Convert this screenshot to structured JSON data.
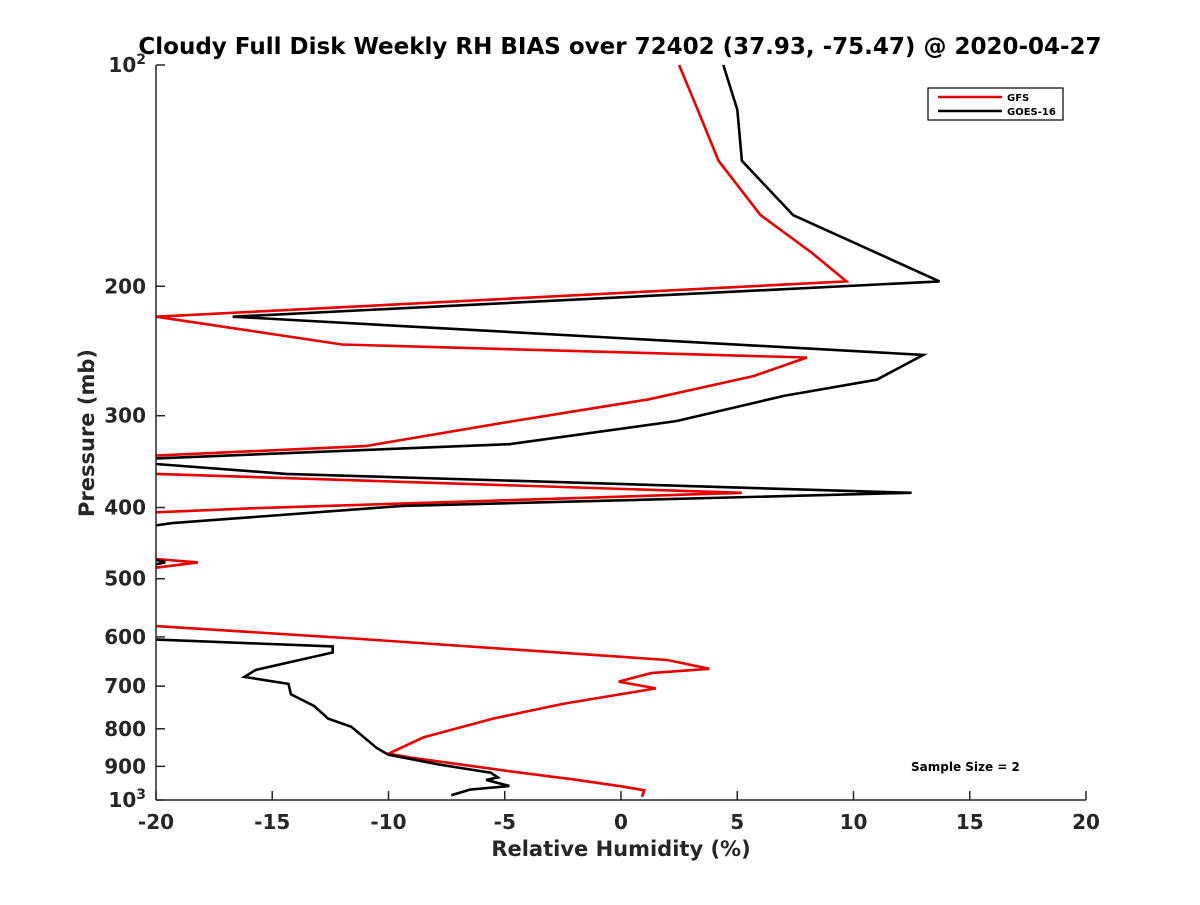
{
  "chart_data": {
    "type": "line",
    "title": "Cloudy Full Disk Weekly RH BIAS over 72402 (37.93, -75.47) @ 2020-04-27",
    "xlabel": "Relative Humidity (%)",
    "ylabel": "Pressure (mb)",
    "xlim": [
      -20,
      20
    ],
    "ylim": [
      100,
      1000
    ],
    "y_scale": "log",
    "y_reversed": true,
    "grid": false,
    "legend_position": "top-right",
    "x_ticks": [
      "-20",
      "-15",
      "-10",
      "-5",
      "0",
      "5",
      "10",
      "15",
      "20"
    ],
    "y_ticks": [
      {
        "value": 100,
        "base": "10",
        "exp": "2"
      },
      {
        "value": 200,
        "label": "200"
      },
      {
        "value": 300,
        "label": "300"
      },
      {
        "value": 400,
        "label": "400"
      },
      {
        "value": 500,
        "label": "500"
      },
      {
        "value": 600,
        "label": "600"
      },
      {
        "value": 700,
        "label": "700"
      },
      {
        "value": 800,
        "label": "800"
      },
      {
        "value": 900,
        "label": "900"
      },
      {
        "value": 1000,
        "base": "10",
        "exp": "3"
      }
    ],
    "annotation": "Sample Size = 2",
    "series": [
      {
        "name": "GFS",
        "color": "#e60000",
        "segments": [
          [
            [
              2.5,
              100
            ],
            [
              3.3,
              115
            ],
            [
              4.2,
              135
            ],
            [
              6.0,
              160
            ],
            [
              8.2,
              180
            ],
            [
              9.7,
              197
            ],
            [
              -20,
              220
            ],
            [
              -12,
              240
            ],
            [
              8.0,
              250
            ],
            [
              5.7,
              265
            ],
            [
              1.2,
              285
            ],
            [
              -4.6,
              305
            ],
            [
              -11.0,
              330
            ],
            [
              -20,
              340
            ]
          ],
          [
            [
              -20,
              360
            ],
            [
              5.2,
              382
            ],
            [
              -15.9,
              401
            ],
            [
              -20,
              406
            ]
          ],
          [
            [
              -20,
              470
            ],
            [
              -18.2,
              475
            ],
            [
              -20,
              483
            ]
          ],
          [
            [
              -20,
              580
            ],
            [
              -11.5,
              603
            ],
            [
              2.0,
              645
            ],
            [
              3.8,
              663
            ],
            [
              1.3,
              672
            ],
            [
              -0.1,
              690
            ],
            [
              1.5,
              705
            ],
            [
              -2.5,
              740
            ],
            [
              -5.5,
              775
            ],
            [
              -8.5,
              822
            ],
            [
              -10.0,
              865
            ],
            [
              -9.1,
              875
            ],
            [
              -5.0,
              912
            ],
            [
              -2.0,
              938
            ],
            [
              0,
              958
            ],
            [
              1.0,
              970
            ],
            [
              0.9,
              990
            ]
          ]
        ]
      },
      {
        "name": "GOES-16",
        "color": "#000000",
        "segments": [
          [
            [
              4.4,
              100
            ],
            [
              5.0,
              115
            ],
            [
              5.2,
              135
            ],
            [
              7.4,
              160
            ],
            [
              13.7,
              197
            ],
            [
              -16.7,
              220
            ],
            [
              13.0,
              248
            ],
            [
              11.0,
              268
            ],
            [
              7.0,
              282
            ],
            [
              2.4,
              305
            ],
            [
              -4.8,
              328
            ],
            [
              -20,
              343
            ]
          ],
          [
            [
              -20,
              349
            ],
            [
              -14.4,
              360
            ],
            [
              12.5,
              382
            ],
            [
              -9.4,
              398
            ],
            [
              -19.3,
              420
            ],
            [
              -20,
              423
            ]
          ],
          [
            [
              -20,
              471
            ],
            [
              -19.6,
              475
            ],
            [
              -20,
              478
            ]
          ],
          [
            [
              -20,
              605
            ],
            [
              -12.4,
              618
            ],
            [
              -12.4,
              630
            ],
            [
              -15.7,
              665
            ],
            [
              -16.2,
              680
            ],
            [
              -14.3,
              695
            ],
            [
              -14.2,
              718
            ],
            [
              -13.2,
              745
            ],
            [
              -12.6,
              775
            ],
            [
              -11.6,
              795
            ],
            [
              -10.5,
              850
            ],
            [
              -10.0,
              868
            ],
            [
              -7.8,
              895
            ],
            [
              -5.6,
              918
            ],
            [
              -5.3,
              932
            ],
            [
              -5.8,
              939
            ],
            [
              -4.8,
              957
            ],
            [
              -6.5,
              968
            ],
            [
              -7.3,
              985
            ]
          ]
        ]
      }
    ]
  }
}
